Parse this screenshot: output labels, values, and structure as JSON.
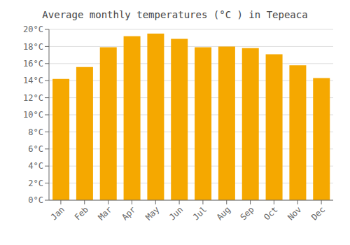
{
  "chart_data": {
    "type": "bar",
    "title": "Average monthly temperatures (°C ) in Tepeaca",
    "categories": [
      "Jan",
      "Feb",
      "Mar",
      "Apr",
      "May",
      "Jun",
      "Jul",
      "Aug",
      "Sep",
      "Oct",
      "Nov",
      "Dec"
    ],
    "values": [
      14.2,
      15.6,
      17.9,
      19.2,
      19.5,
      18.9,
      17.9,
      18.0,
      17.8,
      17.1,
      15.8,
      14.3
    ],
    "color": "#F5A800",
    "ylim": [
      0,
      20
    ],
    "yticks": [
      {
        "value": 0,
        "label": "0°C"
      },
      {
        "value": 2,
        "label": "2°C"
      },
      {
        "value": 4,
        "label": "4°C"
      },
      {
        "value": 6,
        "label": "6°C"
      },
      {
        "value": 8,
        "label": "8°C"
      },
      {
        "value": 10,
        "label": "10°C"
      },
      {
        "value": 12,
        "label": "12°C"
      },
      {
        "value": 14,
        "label": "14°C"
      },
      {
        "value": 16,
        "label": "16°C"
      },
      {
        "value": 18,
        "label": "18°C"
      },
      {
        "value": 20,
        "label": "20°C"
      }
    ],
    "grid": true
  }
}
